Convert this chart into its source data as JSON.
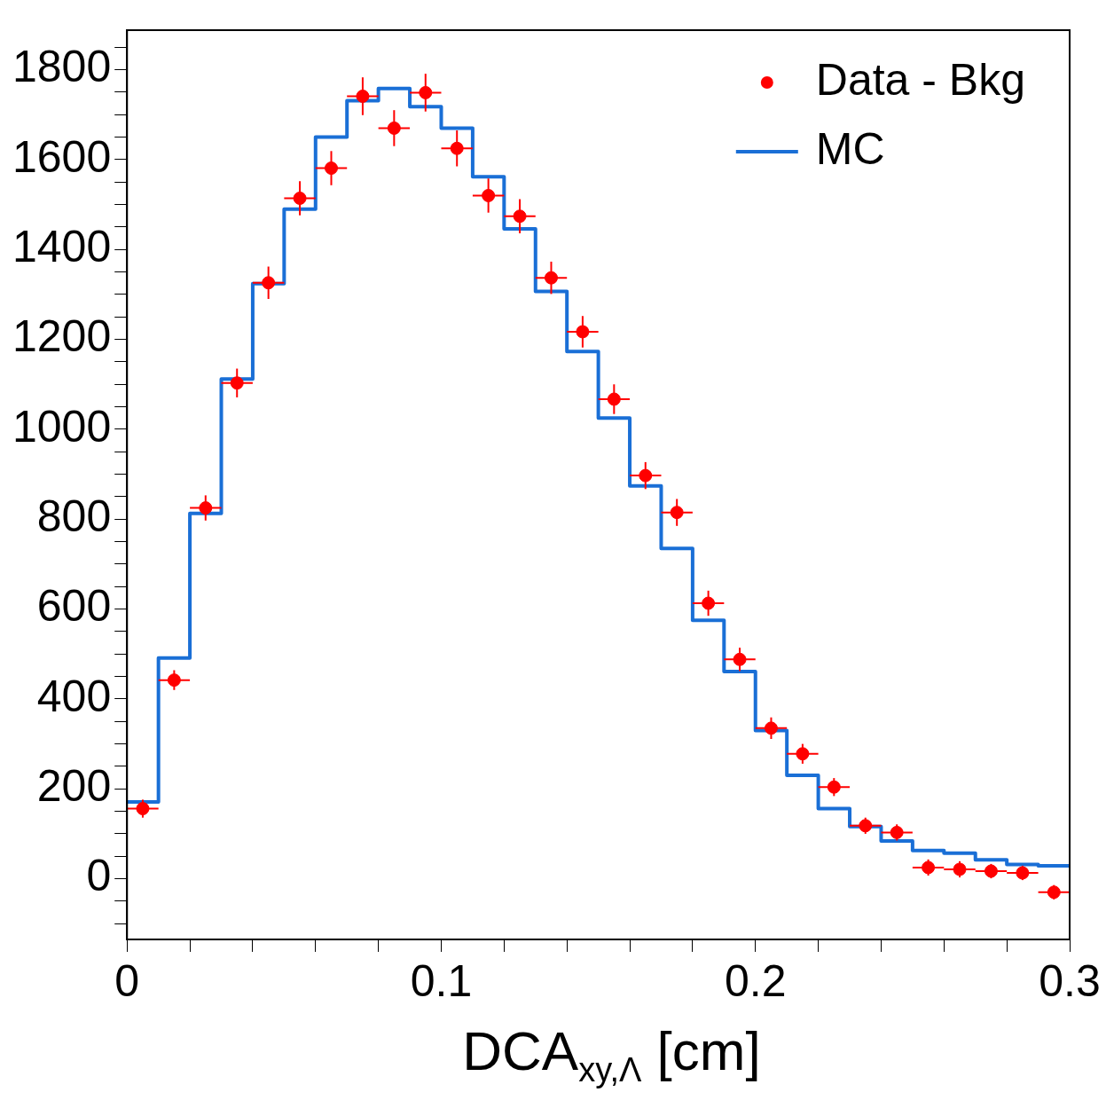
{
  "chart_data": {
    "type": "scatter",
    "xlabel": "DCA$_{xy,Λ}$ [cm]",
    "xlim": [
      0,
      0.3
    ],
    "ylim": [
      -135,
      1888
    ],
    "xticks": [
      0,
      {
        "value": 0.02,
        "label": null
      },
      {
        "value": 0.04,
        "label": null
      },
      {
        "value": 0.06,
        "label": null
      },
      {
        "value": 0.08,
        "label": null
      },
      0.1,
      {
        "value": 0.12,
        "label": null
      },
      {
        "value": 0.14,
        "label": null
      },
      {
        "value": 0.16,
        "label": null
      },
      {
        "value": 0.18,
        "label": null
      },
      0.2,
      {
        "value": 0.22,
        "label": null
      },
      {
        "value": 0.24,
        "label": null
      },
      {
        "value": 0.26,
        "label": null
      },
      {
        "value": 0.28,
        "label": null
      },
      0.3
    ],
    "yticks": [
      {
        "value": -100,
        "label": null
      },
      {
        "value": -50,
        "label": null
      },
      0,
      {
        "value": 50,
        "label": null
      },
      {
        "value": 100,
        "label": null
      },
      {
        "value": 150,
        "label": null
      },
      200,
      {
        "value": 250,
        "label": null
      },
      {
        "value": 300,
        "label": null
      },
      {
        "value": 350,
        "label": null
      },
      400,
      {
        "value": 450,
        "label": null
      },
      {
        "value": 500,
        "label": null
      },
      {
        "value": 550,
        "label": null
      },
      600,
      {
        "value": 650,
        "label": null
      },
      {
        "value": 700,
        "label": null
      },
      {
        "value": 750,
        "label": null
      },
      800,
      {
        "value": 850,
        "label": null
      },
      {
        "value": 900,
        "label": null
      },
      {
        "value": 950,
        "label": null
      },
      1000,
      {
        "value": 1050,
        "label": null
      },
      {
        "value": 1100,
        "label": null
      },
      {
        "value": 1150,
        "label": null
      },
      1200,
      {
        "value": 1250,
        "label": null
      },
      {
        "value": 1300,
        "label": null
      },
      {
        "value": 1350,
        "label": null
      },
      1400,
      {
        "value": 1450,
        "label": null
      },
      {
        "value": 1500,
        "label": null
      },
      {
        "value": 1550,
        "label": null
      },
      1600,
      {
        "value": 1650,
        "label": null
      },
      {
        "value": 1700,
        "label": null
      },
      {
        "value": 1750,
        "label": null
      },
      1800,
      {
        "value": 1850,
        "label": null
      }
    ],
    "grid": false,
    "legend": "top right",
    "series": [
      {
        "name": "Data - Bkg",
        "marker": "circle",
        "color": "#ff0000",
        "x": [
          0.005,
          0.015,
          0.025,
          0.035,
          0.045,
          0.055,
          0.065,
          0.075,
          0.085,
          0.095,
          0.105,
          0.115,
          0.125,
          0.135,
          0.145,
          0.155,
          0.165,
          0.175,
          0.185,
          0.195,
          0.205,
          0.215,
          0.225,
          0.235,
          0.245,
          0.255,
          0.265,
          0.275,
          0.285,
          0.295
        ],
        "values": [
          156,
          442,
          825,
          1103,
          1326,
          1514,
          1581,
          1741,
          1670,
          1749,
          1625,
          1520,
          1474,
          1337,
          1217,
          1067,
          897,
          815,
          613,
          488,
          335,
          278,
          204,
          118,
          103,
          25,
          21,
          17,
          13,
          -30
        ],
        "errors": [
          20,
          22,
          28,
          32,
          36,
          38,
          38,
          42,
          40,
          42,
          40,
          38,
          38,
          36,
          35,
          33,
          30,
          30,
          28,
          26,
          24,
          22,
          20,
          18,
          18,
          18,
          18,
          16,
          16,
          16
        ],
        "xerrors": [
          0.005,
          0.005,
          0.005,
          0.005,
          0.005,
          0.005,
          0.005,
          0.005,
          0.005,
          0.005,
          0.005,
          0.005,
          0.005,
          0.005,
          0.005,
          0.005,
          0.005,
          0.005,
          0.005,
          0.005,
          0.005,
          0.005,
          0.005,
          0.005,
          0.005,
          0.005,
          0.005,
          0.005,
          0.005,
          0.005
        ]
      },
      {
        "name": "MC",
        "type": "histogram",
        "line_style": "solid",
        "color": "#1a6fd6",
        "bins": [
          0,
          0.01,
          0.02,
          0.03,
          0.04,
          0.05,
          0.06,
          0.07,
          0.08,
          0.09,
          0.1,
          0.11,
          0.12,
          0.13,
          0.14,
          0.15,
          0.16,
          0.17,
          0.18,
          0.19,
          0.2,
          0.21,
          0.22,
          0.23,
          0.24,
          0.25,
          0.26,
          0.27,
          0.28,
          0.29,
          0.3
        ],
        "values": [
          171,
          491,
          813,
          1112,
          1324,
          1490,
          1650,
          1731,
          1758,
          1718,
          1670,
          1562,
          1446,
          1307,
          1173,
          1025,
          874,
          735,
          575,
          461,
          330,
          230,
          156,
          116,
          84,
          63,
          57,
          42,
          32,
          29
        ]
      }
    ]
  }
}
